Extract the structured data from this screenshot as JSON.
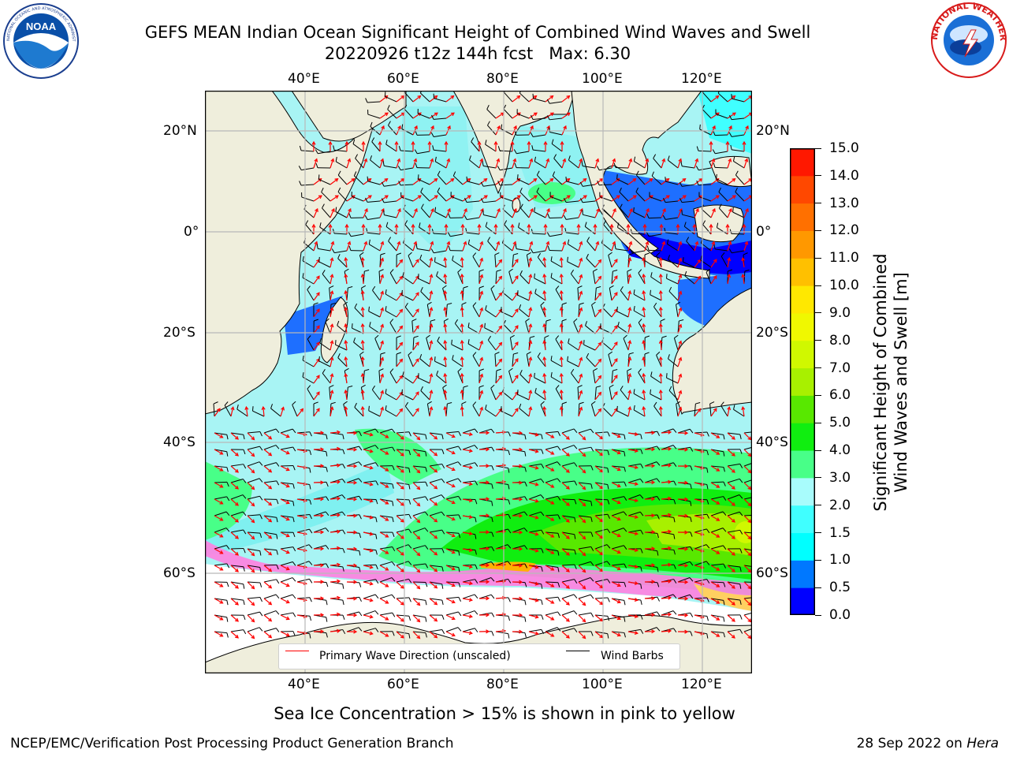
{
  "header": {
    "title_line1": "GEFS MEAN Indian Ocean Significant Height of Combined Wind Waves and Swell",
    "title_line2": "20220926 t12z 144h fcst   Max: 6.30"
  },
  "logos": {
    "noaa_text": "NOAA",
    "noaa_ring_text": "NATIONAL OCEANIC AND ATMOSPHERIC ADMINISTRATION · U.S. DEPARTMENT OF COMMERCE",
    "nws_ring_text": "NATIONAL WEATHER SERVICE"
  },
  "map": {
    "lon_labels": [
      "40°E",
      "60°E",
      "80°E",
      "100°E",
      "120°E"
    ],
    "lat_labels": [
      "20°N",
      "0°",
      "20°S",
      "40°S",
      "60°S"
    ],
    "legend": {
      "wave_label": "Primary Wave Direction (unscaled)",
      "wind_label": "Wind Barbs",
      "wave_color": "#ff0000",
      "wind_color": "#000000"
    },
    "colors": {
      "land": "#efeedc",
      "ocean_default": "#a8f4f4"
    }
  },
  "colorbar": {
    "label_line1": "Significant Height of Combined",
    "label_line2": "Wind Waves and Swell [m]",
    "ticks": [
      "0.0",
      "0.5",
      "1.0",
      "1.5",
      "2.0",
      "3.0",
      "4.0",
      "5.0",
      "6.0",
      "7.0",
      "8.0",
      "9.0",
      "10.0",
      "11.0",
      "12.0",
      "13.0",
      "14.0",
      "15.0"
    ],
    "colors": [
      "#0000ff",
      "#0078ff",
      "#00ffff",
      "#40ffff",
      "#a8fcfc",
      "#48ff88",
      "#10ee10",
      "#58e800",
      "#a8f000",
      "#d0f800",
      "#f0f800",
      "#ffe800",
      "#ffc000",
      "#ff9800",
      "#ff7000",
      "#ff4800",
      "#ff1800"
    ]
  },
  "captions": {
    "sea_ice": "Sea Ice Concentration > 15% is shown in pink to yellow",
    "branch": "NCEP/EMC/Verification Post Processing Product Generation Branch",
    "date_prefix": "28 Sep 2022 on ",
    "date_machine": "Hera"
  }
}
